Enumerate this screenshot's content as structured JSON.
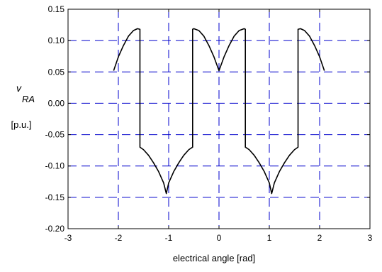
{
  "chart_data": {
    "type": "line",
    "title": "",
    "xlabel": "electrical angle [rad]",
    "ylabel": {
      "symbol": "v",
      "subscript": "RA",
      "unit": "[p.u.]"
    },
    "xlim": [
      -3,
      3
    ],
    "ylim": [
      -0.2,
      0.15
    ],
    "x_ticks": [
      -3,
      -2,
      -1,
      0,
      1,
      2,
      3
    ],
    "x_tick_labels": [
      "-3",
      "-2",
      "-1",
      "0",
      "1",
      "2",
      "3"
    ],
    "y_ticks": [
      0.15,
      0.1,
      0.05,
      0.0,
      -0.05,
      -0.1,
      -0.15,
      -0.2
    ],
    "y_tick_labels": [
      "0.15",
      "0.10",
      "0.05",
      "0.00",
      "-0.05",
      "-0.10",
      "-0.15",
      "-0.20"
    ],
    "grid": true,
    "grid_style": "dashed",
    "colors": {
      "grid": "#0000cc",
      "line": "#000000",
      "frame": "#000000"
    },
    "series": [
      {
        "x": [
          -2.094,
          -2.0,
          -1.9,
          -1.8,
          -1.7,
          -1.62,
          -1.571,
          -1.571,
          -1.5,
          -1.4,
          -1.3,
          -1.2,
          -1.1,
          -1.047,
          -1.0,
          -0.9,
          -0.8,
          -0.7,
          -0.6,
          -0.524,
          -0.524,
          -0.5,
          -0.4,
          -0.3,
          -0.2,
          -0.1,
          0.0,
          0.1,
          0.2,
          0.3,
          0.4,
          0.5,
          0.524,
          0.524,
          0.6,
          0.7,
          0.8,
          0.9,
          1.0,
          1.047,
          1.1,
          1.2,
          1.3,
          1.4,
          1.5,
          1.571,
          1.571,
          1.62,
          1.7,
          1.8,
          1.9,
          2.0,
          2.094
        ],
        "y": [
          0.052,
          0.074,
          0.092,
          0.107,
          0.116,
          0.119,
          0.118,
          -0.07,
          -0.074,
          -0.083,
          -0.095,
          -0.109,
          -0.127,
          -0.144,
          -0.127,
          -0.109,
          -0.095,
          -0.083,
          -0.074,
          -0.07,
          0.118,
          0.119,
          0.116,
          0.107,
          0.092,
          0.074,
          0.052,
          0.074,
          0.092,
          0.107,
          0.116,
          0.119,
          0.118,
          -0.07,
          -0.074,
          -0.083,
          -0.095,
          -0.109,
          -0.127,
          -0.144,
          -0.127,
          -0.109,
          -0.095,
          -0.083,
          -0.074,
          -0.07,
          0.118,
          0.119,
          0.116,
          0.107,
          0.092,
          0.074,
          0.052
        ]
      }
    ]
  }
}
